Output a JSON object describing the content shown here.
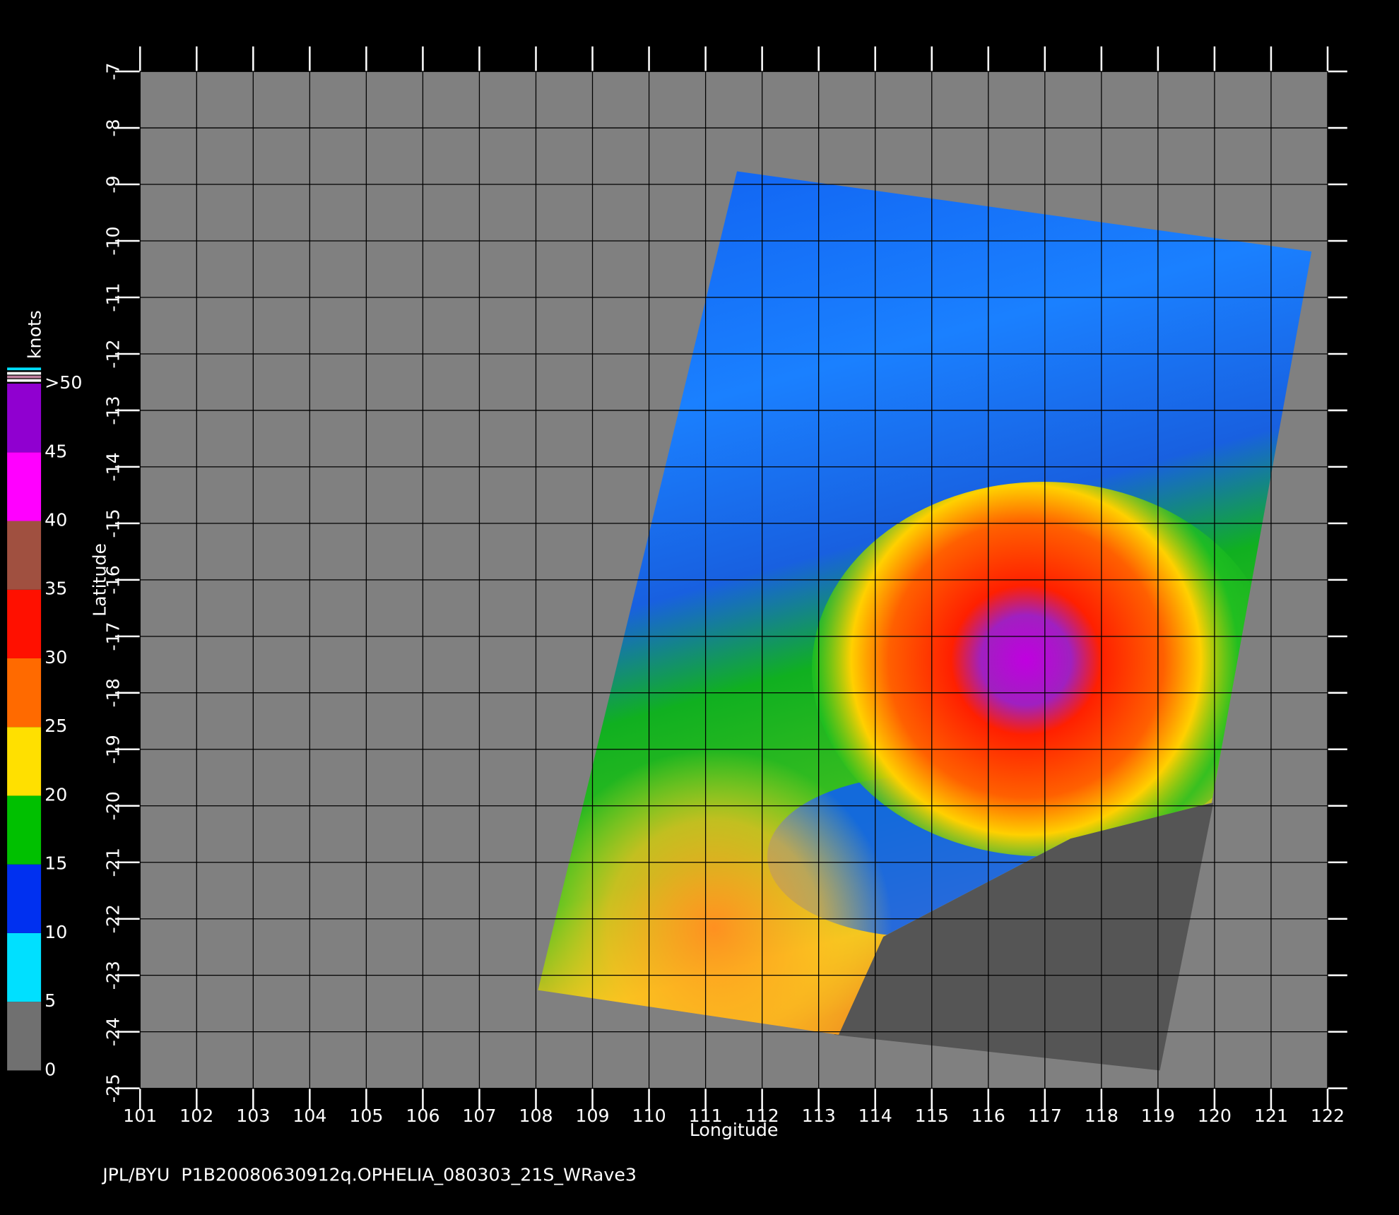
{
  "map": {
    "xlabel": "Longitude",
    "ylabel": "Latitude",
    "xlim": [
      101,
      122
    ],
    "ylim": [
      -25,
      -7
    ],
    "xticks": [
      101,
      102,
      103,
      104,
      105,
      106,
      107,
      108,
      109,
      110,
      111,
      112,
      113,
      114,
      115,
      116,
      117,
      118,
      119,
      120,
      121,
      122
    ],
    "yticks": [
      -7,
      -8,
      -9,
      -10,
      -11,
      -12,
      -13,
      -14,
      -15,
      -16,
      -17,
      -18,
      -19,
      -20,
      -21,
      -22,
      -23,
      -24,
      -25
    ],
    "grid": true
  },
  "colorbar": {
    "title": "knots",
    "ticks": [
      0,
      5,
      10,
      15,
      20,
      25,
      30,
      35,
      40,
      45,
      {
        "value": 50,
        "label": ">50"
      }
    ],
    "colors": [
      "#707070",
      "#00e0ff",
      "#0030f0",
      "#00c000",
      "#ffe000",
      "#ff6a00",
      "#ff1000",
      "#a05040",
      "#ff00ff",
      "#9000d0"
    ]
  },
  "footer": "JPL/BYU  P1B20080630912q.OPHELIA_080303_21S_WRave3"
}
